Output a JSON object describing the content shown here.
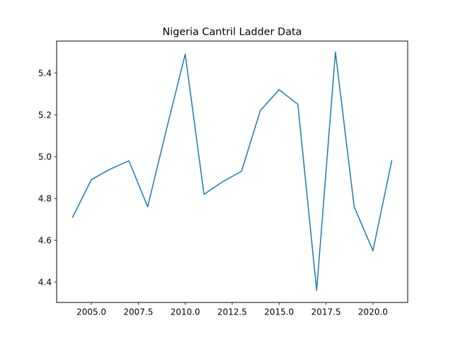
{
  "chart_data": {
    "type": "line",
    "title": "Nigeria Cantril Ladder Data",
    "xlabel": "",
    "ylabel": "",
    "xlim": [
      2003.15,
      2021.85
    ],
    "ylim": [
      4.3025,
      5.5525
    ],
    "x_ticks": [
      2005.0,
      2007.5,
      2010.0,
      2012.5,
      2015.0,
      2017.5,
      2020.0
    ],
    "x_tick_labels": [
      "2005.0",
      "2007.5",
      "2010.0",
      "2012.5",
      "2015.0",
      "2017.5",
      "2020.0"
    ],
    "y_ticks": [
      4.4,
      4.6,
      4.8,
      5.0,
      5.2,
      5.4
    ],
    "y_tick_labels": [
      "4.4",
      "4.6",
      "4.8",
      "5.0",
      "5.2",
      "5.4"
    ],
    "grid": false,
    "series": [
      {
        "color": "#1f77b4",
        "x": [
          2004,
          2005,
          2006,
          2007,
          2008,
          2009,
          2010,
          2011,
          2012,
          2013,
          2014,
          2015,
          2016,
          2017,
          2018,
          2019,
          2020,
          2021
        ],
        "y": [
          4.71,
          4.89,
          4.94,
          4.98,
          4.76,
          5.13,
          5.49,
          4.82,
          4.88,
          4.93,
          5.22,
          5.32,
          5.25,
          4.36,
          5.5,
          4.76,
          4.55,
          4.98
        ]
      }
    ]
  }
}
